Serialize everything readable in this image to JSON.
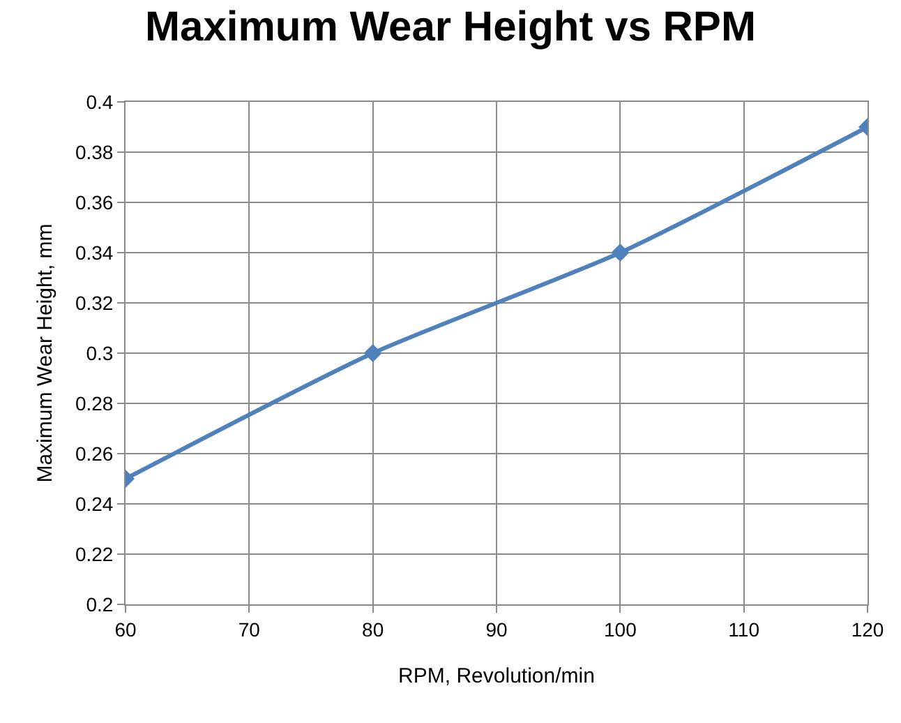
{
  "chart_data": {
    "type": "line",
    "title": "Maximum Wear Height vs RPM",
    "xlabel": "RPM, Revolution/min",
    "ylabel": "Maximum Wear Height, mm",
    "x": [
      60,
      80,
      100,
      120
    ],
    "series": [
      {
        "color": "#4f81bd",
        "values": [
          0.25,
          0.3,
          0.34,
          0.39
        ]
      }
    ],
    "xlim": [
      60,
      120
    ],
    "xticks": [
      60,
      70,
      80,
      90,
      100,
      110,
      120
    ],
    "ylim": [
      0.2,
      0.4
    ],
    "yticks": [
      {
        "value": 0.2,
        "label": "0.2"
      },
      {
        "value": 0.22,
        "label": "0.22"
      },
      {
        "value": 0.24,
        "label": "0.24"
      },
      {
        "value": 0.26,
        "label": "0.26"
      },
      {
        "value": 0.28,
        "label": "0.28"
      },
      {
        "value": 0.3,
        "label": "0.3"
      },
      {
        "value": 0.32,
        "label": "0.32"
      },
      {
        "value": 0.34,
        "label": "0.34"
      },
      {
        "value": 0.36,
        "label": "0.36"
      },
      {
        "value": 0.38,
        "label": "0.38"
      },
      {
        "value": 0.4,
        "label": "0.4"
      }
    ],
    "grid": true,
    "marker": "diamond",
    "line_style": "solid"
  }
}
